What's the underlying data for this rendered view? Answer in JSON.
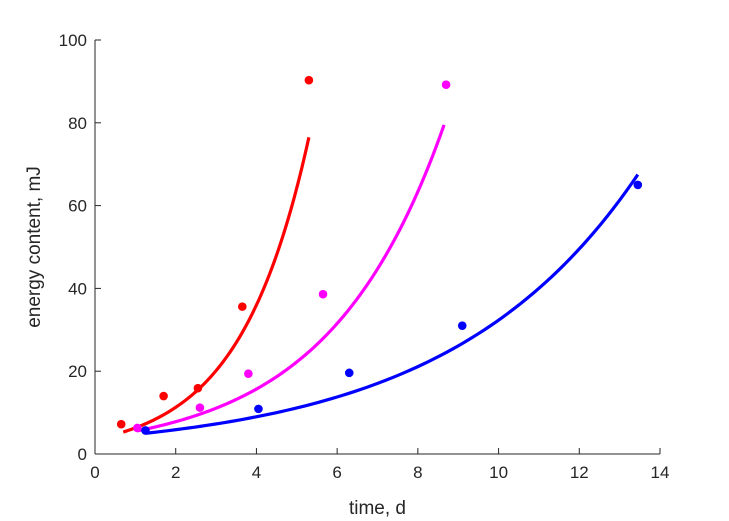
{
  "chart_data": {
    "type": "scatter",
    "title": "",
    "xlabel": "time, d",
    "ylabel": "energy content, mJ",
    "xlim": [
      0,
      14
    ],
    "ylim": [
      0,
      100
    ],
    "xticks": [
      0,
      2,
      4,
      6,
      8,
      10,
      12,
      14
    ],
    "yticks": [
      0,
      20,
      40,
      60,
      80,
      100
    ],
    "grid": false,
    "legend": "none",
    "series": [
      {
        "color": "#ff0000",
        "points": [
          {
            "x": 0.65,
            "y": 7.2
          },
          {
            "x": 1.7,
            "y": 14.0
          },
          {
            "x": 2.55,
            "y": 15.9
          },
          {
            "x": 3.65,
            "y": 35.6
          },
          {
            "x": 5.3,
            "y": 90.3
          }
        ],
        "fit": {
          "x_start": 0.7,
          "x_end": 5.3,
          "y_start": 5.3,
          "y_end": 76.5
        }
      },
      {
        "color": "#ff00ff",
        "points": [
          {
            "x": 1.05,
            "y": 6.3
          },
          {
            "x": 2.6,
            "y": 11.2
          },
          {
            "x": 3.8,
            "y": 19.4
          },
          {
            "x": 5.65,
            "y": 38.6
          },
          {
            "x": 8.7,
            "y": 89.2
          }
        ],
        "fit": {
          "x_start": 1.05,
          "x_end": 8.65,
          "y_start": 5.6,
          "y_end": 79.5
        }
      },
      {
        "color": "#0000ff",
        "points": [
          {
            "x": 1.25,
            "y": 5.7
          },
          {
            "x": 4.05,
            "y": 10.9
          },
          {
            "x": 6.3,
            "y": 19.6
          },
          {
            "x": 9.1,
            "y": 31.0
          },
          {
            "x": 13.45,
            "y": 65.0
          }
        ],
        "fit": {
          "x_start": 1.25,
          "x_end": 13.45,
          "y_start": 5.0,
          "y_end": 67.5
        }
      }
    ]
  }
}
